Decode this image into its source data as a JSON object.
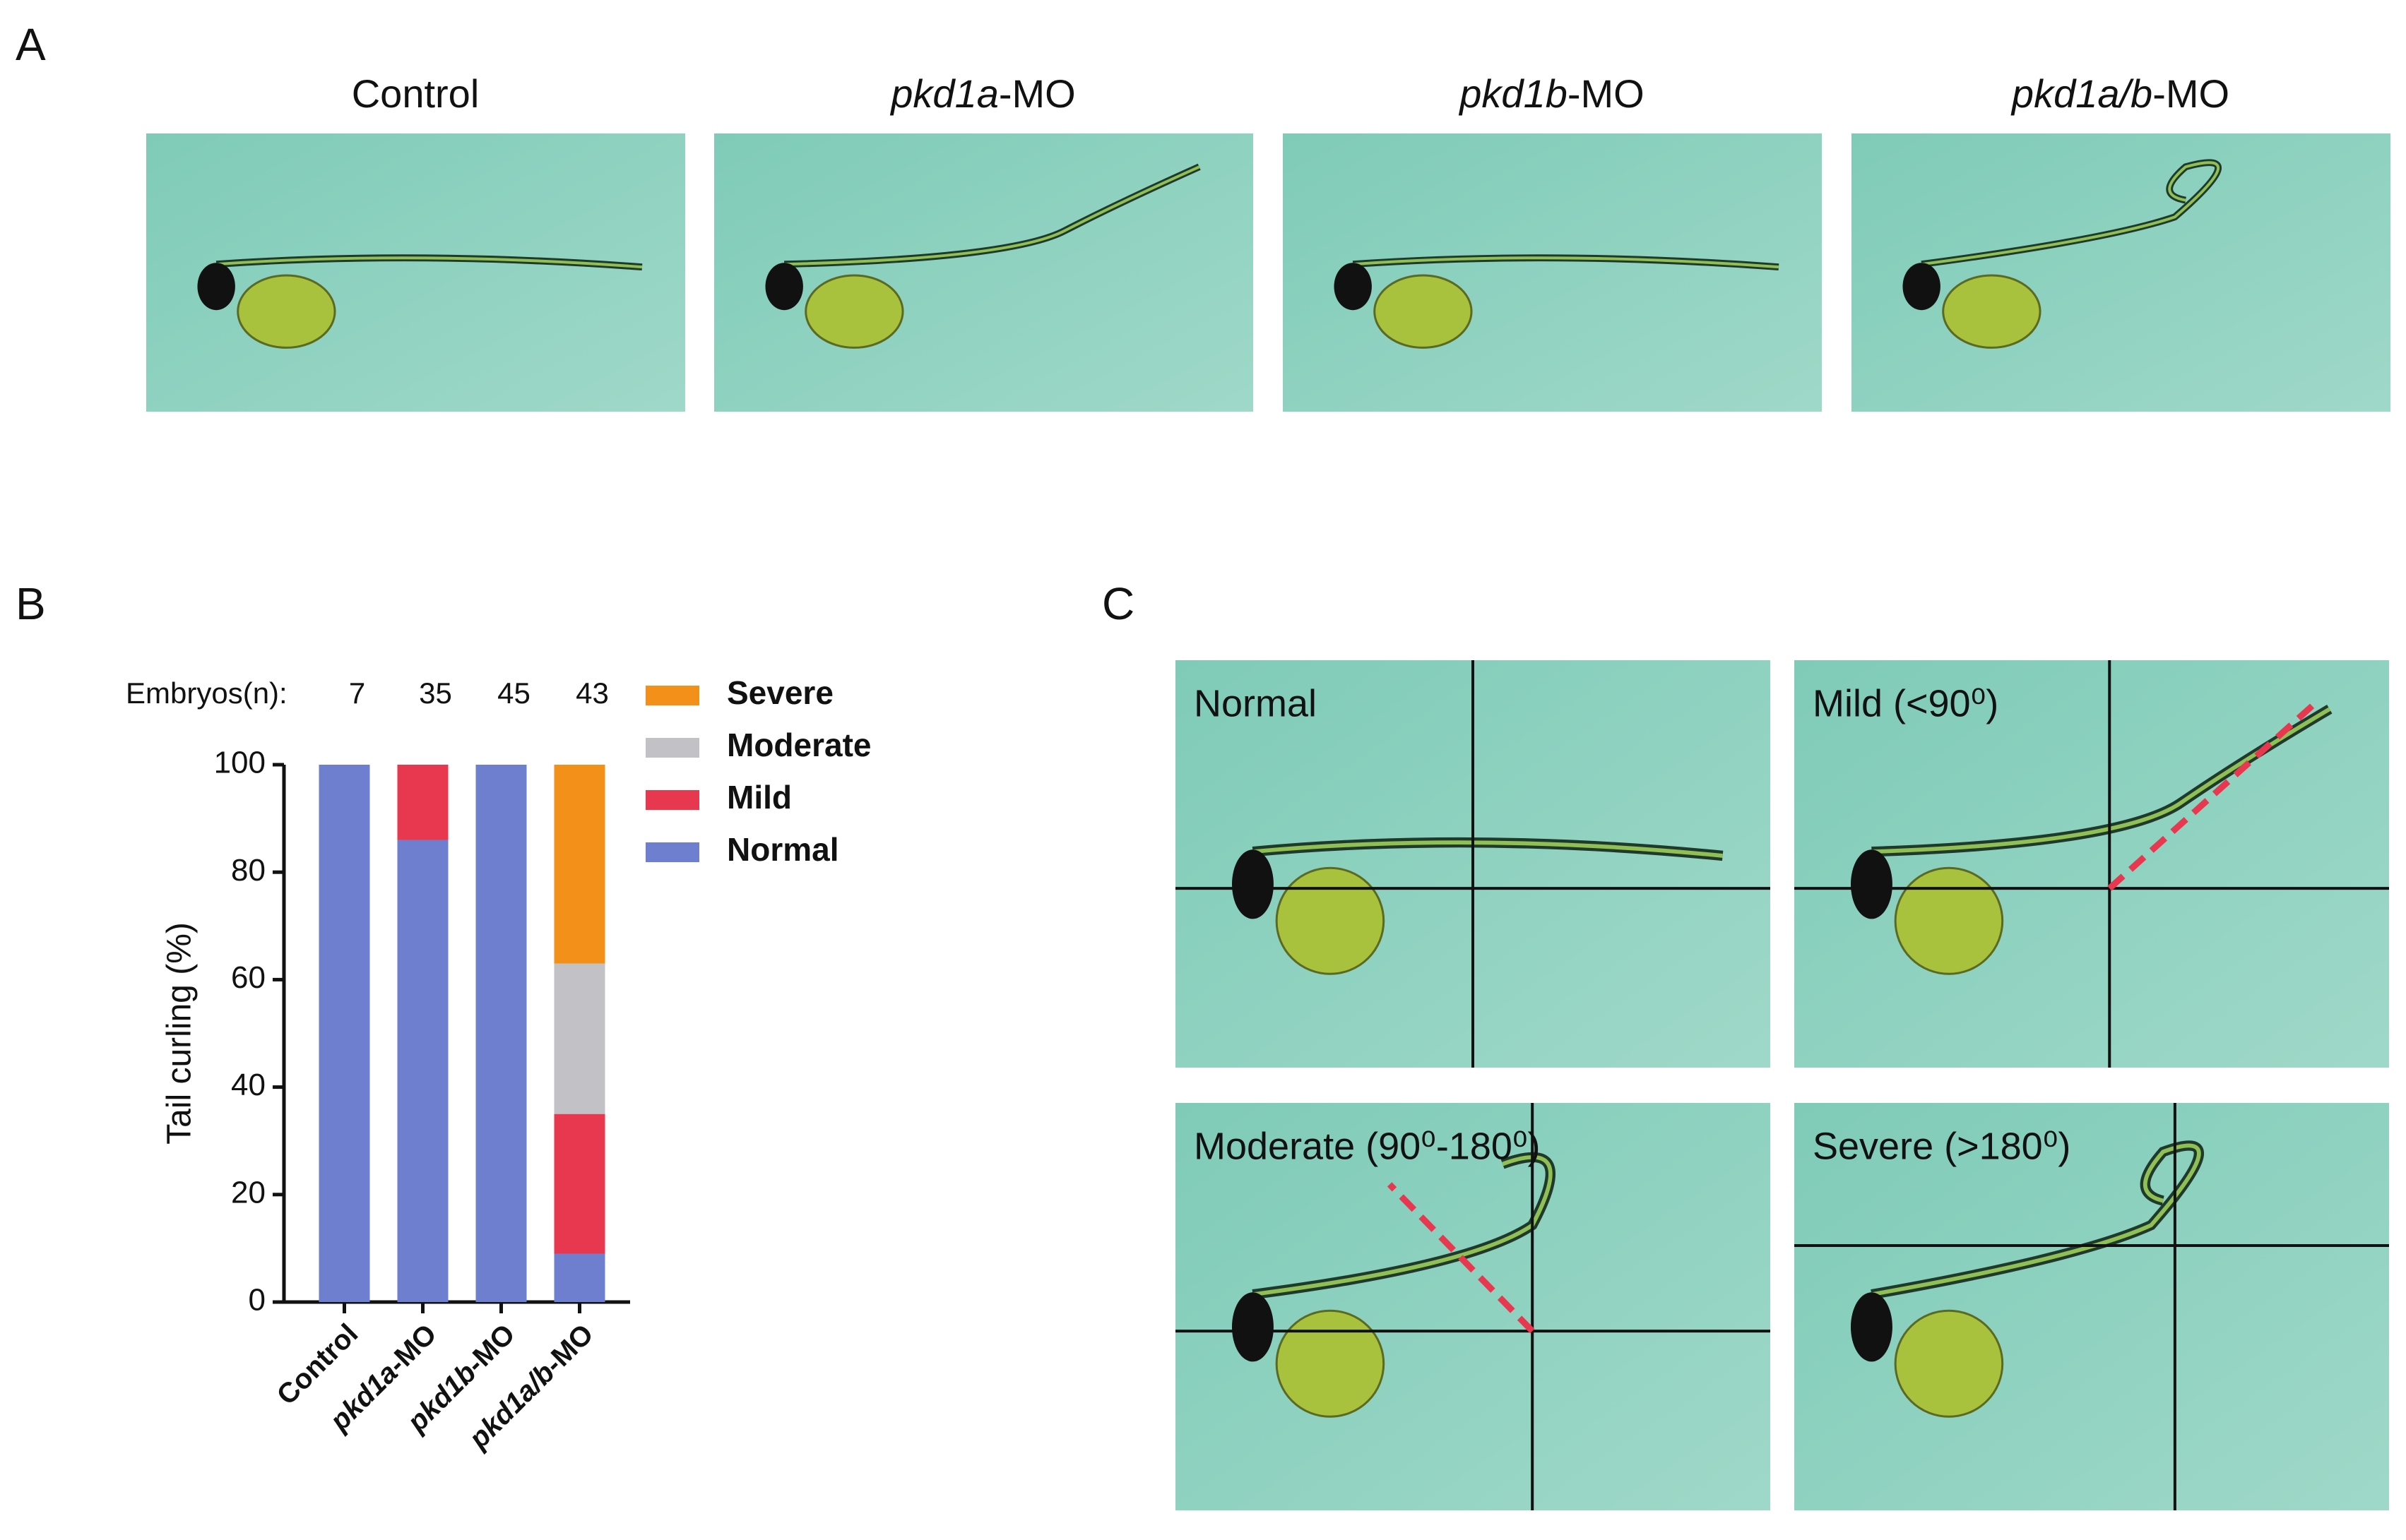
{
  "panel_labels": [
    "A",
    "B",
    "C"
  ],
  "panel_a": {
    "titles": [
      "Control",
      "pkd1a-MO",
      "pkd1b-MO",
      "pkd1a/b-MO"
    ]
  },
  "chart_data": {
    "type": "bar",
    "stacked": true,
    "ylabel": "Tail curling (%)",
    "categories": [
      "Control",
      "pkd1a-MO",
      "pkd1b-MO",
      "pkd1a/b-MO"
    ],
    "series": [
      {
        "name": "Normal",
        "color": "#6e7fd0",
        "values": [
          100,
          86,
          100,
          9
        ]
      },
      {
        "name": "Mild",
        "color": "#e8384f",
        "values": [
          0,
          14,
          0,
          26
        ]
      },
      {
        "name": "Moderate",
        "color": "#c2c2c6",
        "values": [
          0,
          0,
          0,
          28
        ]
      },
      {
        "name": "Severe",
        "color": "#f39019",
        "values": [
          0,
          0,
          0,
          37
        ]
      }
    ],
    "ylim": [
      0,
      100
    ],
    "yticks": [
      0,
      20,
      40,
      60,
      80,
      100
    ],
    "annotation_label": "Embryos(n):",
    "annotation_values": [
      7,
      35,
      45,
      43
    ]
  },
  "panel_c": {
    "labels": [
      "Normal",
      "Mild (<90⁰)",
      "Moderate (90⁰-180⁰)",
      "Severe (>180⁰)"
    ]
  }
}
